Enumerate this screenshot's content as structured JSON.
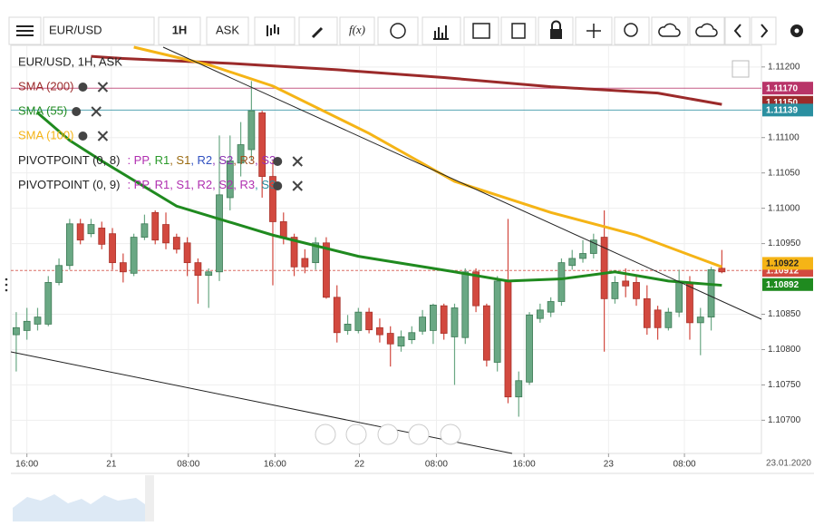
{
  "toolbar": {
    "symbol": "EUR/USD",
    "interval": "1H",
    "side": "ASK",
    "formula": "f(x)"
  },
  "chart_data": {
    "type": "candlestick",
    "title": "EUR/USD, 1H, ASK",
    "up_color": "#6aa884",
    "down_color": "#d2493f",
    "xlim": [
      -0.5,
      69.7
    ],
    "ylim": [
      1.10653,
      1.11228
    ],
    "open": [
      1.10821,
      1.10827,
      1.10836,
      1.10836,
      1.10895,
      1.10919,
      1.10978,
      1.10964,
      1.10972,
      1.10964,
      1.10923,
      1.10908,
      1.10959,
      1.10994,
      1.10977,
      1.10959,
      1.10951,
      1.10923,
      1.10905,
      1.1091,
      1.11015,
      1.11064,
      1.11083,
      1.11135,
      1.11045,
      1.10981,
      1.10959,
      1.10929,
      1.10923,
      1.10951,
      1.10874,
      1.10827,
      1.10827,
      1.10853,
      1.10831,
      1.10823,
      1.10805,
      1.10814,
      1.10826,
      1.10827,
      1.10862,
      1.10818,
      1.10817,
      1.1091,
      1.10862,
      1.10782,
      1.10897,
      1.10733,
      1.10754,
      1.10844,
      1.10853,
      1.10868,
      1.10919,
      1.10929,
      1.10936,
      1.10959,
      1.10872,
      1.10897,
      1.10895,
      1.10872,
      1.10856,
      1.10831,
      1.10853,
      1.10895,
      1.10838,
      1.10846,
      1.10915
    ],
    "high": [
      1.10853,
      1.10859,
      1.10859,
      1.10904,
      1.10929,
      1.10985,
      1.10985,
      1.10985,
      1.10981,
      1.10972,
      1.10936,
      1.10964,
      1.10991,
      1.10997,
      1.10994,
      1.10964,
      1.10959,
      1.10929,
      1.10915,
      1.11103,
      1.11103,
      1.11122,
      1.1118,
      1.11138,
      1.11067,
      1.10994,
      1.10964,
      1.10942,
      1.10959,
      1.10959,
      1.10891,
      1.10849,
      1.10859,
      1.10859,
      1.10844,
      1.10833,
      1.10827,
      1.10833,
      1.10856,
      1.10865,
      1.10865,
      1.10865,
      1.10915,
      1.10915,
      1.10865,
      1.10904,
      1.10985,
      1.10769,
      1.10853,
      1.10865,
      1.10874,
      1.10929,
      1.10941,
      1.10955,
      1.10964,
      1.10997,
      1.10904,
      1.10915,
      1.10904,
      1.10891,
      1.10862,
      1.10859,
      1.10913,
      1.10904,
      1.10859,
      1.10917,
      1.10941
    ],
    "low": [
      1.10769,
      1.10814,
      1.10827,
      1.10833,
      1.10891,
      1.10913,
      1.10949,
      1.10959,
      1.10942,
      1.10913,
      1.10895,
      1.10904,
      1.10955,
      1.10949,
      1.10942,
      1.10936,
      1.10904,
      1.10865,
      1.10859,
      1.10897,
      1.10997,
      1.11045,
      1.11067,
      1.11015,
      1.10891,
      1.10949,
      1.10904,
      1.10908,
      1.10913,
      1.10872,
      1.1081,
      1.10821,
      1.10823,
      1.10823,
      1.1081,
      1.10776,
      1.10797,
      1.10808,
      1.10821,
      1.10808,
      1.10814,
      1.1075,
      1.10808,
      1.10853,
      1.10776,
      1.10769,
      1.10724,
      1.10705,
      1.1075,
      1.10838,
      1.10846,
      1.10862,
      1.10913,
      1.10923,
      1.10929,
      1.10797,
      1.10865,
      1.10874,
      1.10862,
      1.10821,
      1.10814,
      1.10827,
      1.10846,
      1.10814,
      1.10792,
      1.10827,
      1.10908
    ],
    "close": [
      1.10831,
      1.1084,
      1.10846,
      1.10895,
      1.10919,
      1.10978,
      1.10955,
      1.10977,
      1.10949,
      1.10923,
      1.1091,
      1.10959,
      1.10978,
      1.10955,
      1.10951,
      1.10942,
      1.10923,
      1.10905,
      1.1091,
      1.11019,
      1.11067,
      1.1109,
      1.11138,
      1.11045,
      1.10981,
      1.10959,
      1.10917,
      1.10917,
      1.10951,
      1.10874,
      1.10824,
      1.10836,
      1.10853,
      1.10828,
      1.10821,
      1.10808,
      1.10818,
      1.10824,
      1.10846,
      1.10863,
      1.10823,
      1.10859,
      1.1091,
      1.10862,
      1.10785,
      1.10897,
      1.10733,
      1.10756,
      1.10849,
      1.10856,
      1.10868,
      1.10923,
      1.10929,
      1.10936,
      1.10955,
      1.10872,
      1.10895,
      1.1089,
      1.10872,
      1.10831,
      1.10831,
      1.10853,
      1.10895,
      1.10838,
      1.10846,
      1.10913,
      1.1091
    ],
    "yticks": [
      {
        "value": 1.112,
        "label": "1.11200"
      },
      {
        "value": 1.111,
        "label": "1.11100"
      },
      {
        "value": 1.1105,
        "label": "1.11050"
      },
      {
        "value": 1.11,
        "label": "1.11000"
      },
      {
        "value": 1.1095,
        "label": "1.10950"
      },
      {
        "value": 1.1085,
        "label": "1.10850"
      },
      {
        "value": 1.108,
        "label": "1.10800"
      },
      {
        "value": 1.1075,
        "label": "1.10750"
      },
      {
        "value": 1.107,
        "label": "1.10700"
      }
    ],
    "xticks": [
      {
        "value": 1,
        "label": "16:00"
      },
      {
        "value": 8.9,
        "label": "21"
      },
      {
        "value": 16.1,
        "label": "08:00"
      },
      {
        "value": 24.2,
        "label": "16:00"
      },
      {
        "value": 32.1,
        "label": "22"
      },
      {
        "value": 39.3,
        "label": "08:00"
      },
      {
        "value": 47.5,
        "label": "16:00"
      },
      {
        "value": 55.4,
        "label": "23"
      },
      {
        "value": 62.5,
        "label": "08:00"
      }
    ],
    "date_label": "23.01.2020",
    "grid": true,
    "overlays": [
      {
        "name": "SMA (200)",
        "color": "#9b2a2a",
        "x": [
          7,
          10,
          20,
          30,
          40,
          50,
          60,
          66
        ],
        "values": [
          1.11215,
          1.11212,
          1.11205,
          1.11196,
          1.11185,
          1.11172,
          1.11163,
          1.11147
        ]
      },
      {
        "name": "SMA (55)",
        "color": "#1f8a1f",
        "x": [
          2,
          5,
          8,
          15,
          24,
          32,
          41,
          46,
          51,
          56,
          61,
          66
        ],
        "values": [
          1.11135,
          1.11096,
          1.11067,
          1.11003,
          1.10962,
          1.10932,
          1.1091,
          1.10897,
          1.109,
          1.1091,
          1.10897,
          1.10891
        ]
      },
      {
        "name": "SMA (100)",
        "color": "#f5b416",
        "x": [
          11,
          18,
          24,
          33,
          41,
          50,
          58,
          66
        ],
        "values": [
          1.11228,
          1.11203,
          1.11173,
          1.11106,
          1.11038,
          1.10994,
          1.10962,
          1.10917
        ]
      }
    ],
    "pivots": [
      {
        "name": "PIVOTPOINT (0, 8)",
        "parts": [
          {
            "text": ": PP",
            "color": "#b02fb0"
          },
          {
            "text": ", R1",
            "color": "#2a9a2a"
          },
          {
            "text": ", S1",
            "color": "#9a6a10"
          },
          {
            "text": ", R2",
            "color": "#3050c0"
          },
          {
            "text": ", S2",
            "color": "#8a2fb0"
          },
          {
            "text": ", R3",
            "color": "#a05020"
          },
          {
            "text": ", S3",
            "color": "#9a2fb0"
          }
        ]
      },
      {
        "name": "PIVOTPOINT (0, 9)",
        "parts": [
          {
            "text": ": PP",
            "color": "#b02fb0"
          },
          {
            "text": ", R1",
            "color": "#b02fb0"
          },
          {
            "text": ", S1",
            "color": "#b02fb0"
          },
          {
            "text": ", R2",
            "color": "#b02fb0"
          },
          {
            "text": ", S2",
            "color": "#b02fb0"
          },
          {
            "text": ", R3",
            "color": "#b02fb0"
          },
          {
            "text": ", S3",
            "color": "#2a8fa0"
          }
        ]
      }
    ],
    "levels": [
      {
        "value": 1.1115,
        "label": "1.11150",
        "color": "#9b2a2a"
      },
      {
        "value": 1.1117,
        "label": "1.11170",
        "color": "#b83468",
        "line": "solid"
      },
      {
        "value": 1.11139,
        "label": "1.11139",
        "color": "#2a8fa0",
        "line": "solid"
      },
      {
        "value": 1.10912,
        "label": "1.10912",
        "color": "#d2493f",
        "line": "dashed"
      },
      {
        "value": 1.10922,
        "label": "1.10922",
        "color": "#f5b416"
      },
      {
        "value": 1.10892,
        "label": "1.10892",
        "color": "#1f8a1f"
      }
    ]
  }
}
